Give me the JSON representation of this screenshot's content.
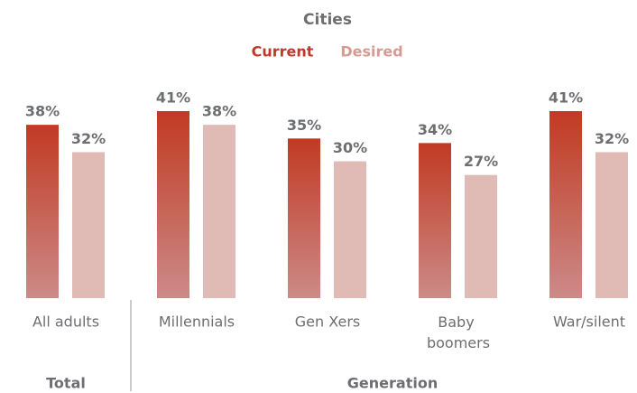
{
  "chart_data": {
    "type": "bar",
    "title": "Cities",
    "categories": [
      "All adults",
      "Millennials",
      "Gen Xers",
      "Baby boomers",
      "War/silent"
    ],
    "series": [
      {
        "name": "Current",
        "color": "#c0392b",
        "values": [
          38,
          41,
          35,
          34,
          41
        ],
        "value_labels": [
          "38%",
          "41%",
          "35%",
          "34%",
          "41%"
        ]
      },
      {
        "name": "Desired",
        "color": "#e0bab4",
        "values": [
          32,
          38,
          30,
          27,
          32
        ],
        "value_labels": [
          "32%",
          "38%",
          "30%",
          "27%",
          "32%"
        ]
      }
    ],
    "groups": [
      "Total",
      "Generation"
    ]
  }
}
